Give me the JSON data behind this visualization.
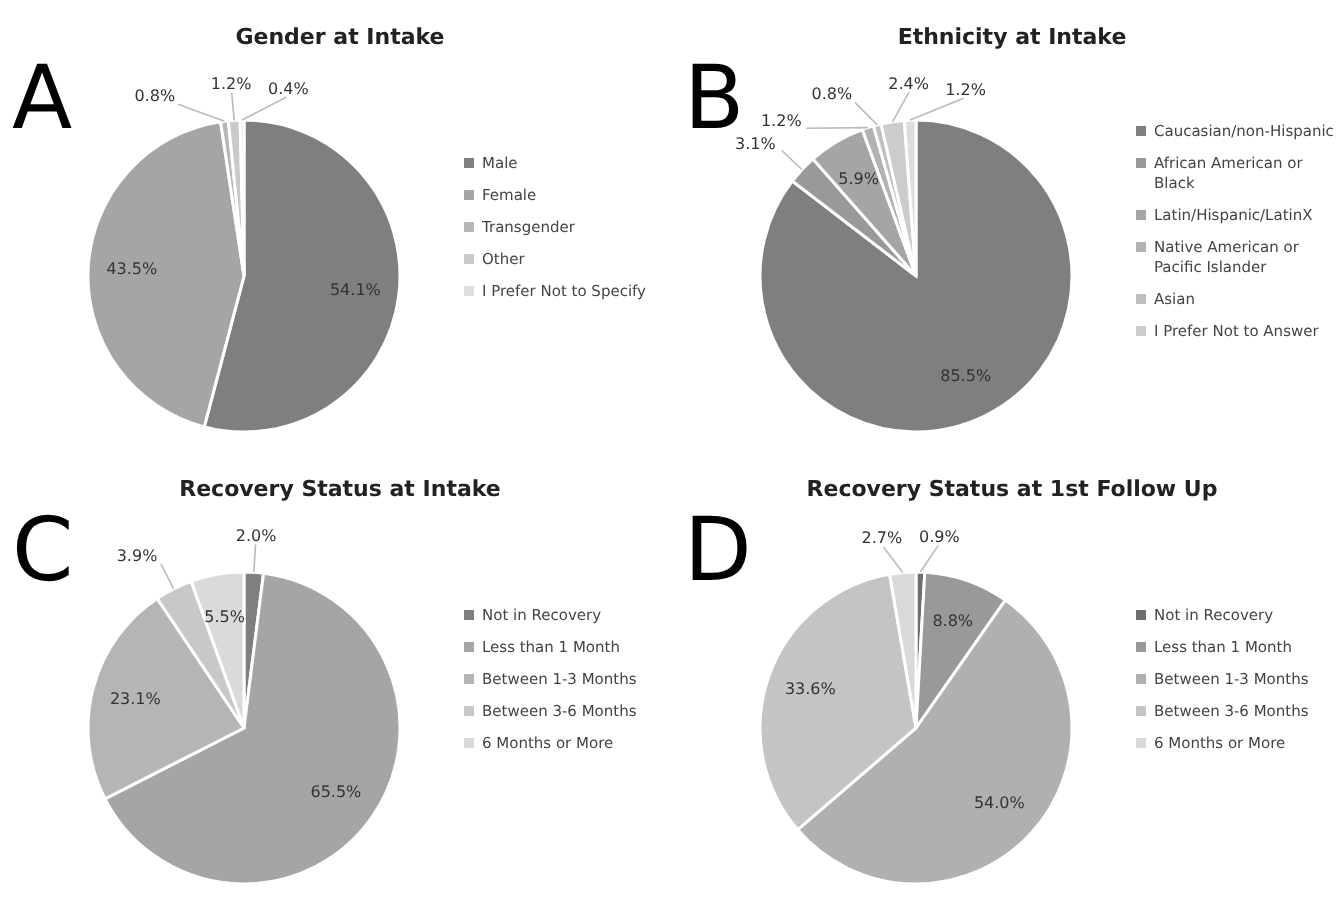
{
  "chart_data": [
    {
      "type": "pie",
      "title": "Gender at Intake",
      "annotations": [
        "A"
      ],
      "categories": [
        "Male",
        "Female",
        "Transgender",
        "Other",
        "I Prefer Not to Specify"
      ],
      "values": [
        54.1,
        43.5,
        0.8,
        1.2,
        0.4
      ],
      "colors": [
        "#7f7f7f",
        "#a5a5a5",
        "#b7b7b7",
        "#c9c9c9",
        "#dedede"
      ],
      "value_labels": [
        "54.1%",
        "43.5%",
        "0.8%",
        "1.2%",
        "0.4%"
      ],
      "legend": "right"
    },
    {
      "type": "pie",
      "title": "Ethnicity at Intake",
      "annotations": [
        "B"
      ],
      "categories": [
        "Caucasian/non-Hispanic",
        "African American or Black",
        "Latin/Hispanic/LatinX",
        "Native American or Pacific Islander",
        "Asian",
        "I Prefer Not to Answer",
        null
      ],
      "values": [
        85.5,
        3.1,
        5.9,
        1.2,
        0.8,
        2.4,
        1.2
      ],
      "colors": [
        "#7f7f7f",
        "#999999",
        "#a5a5a5",
        "#b2b2b2",
        "#bfbfbf",
        "#cccccc",
        "#dddddd"
      ],
      "value_labels": [
        "85.5%",
        "3.1%",
        "5.9%",
        "1.2%",
        "0.8%",
        "2.4%",
        "1.2%"
      ],
      "legend": "right"
    },
    {
      "type": "pie",
      "title": "Recovery Status at Intake",
      "annotations": [
        "C"
      ],
      "categories": [
        "Not in Recovery",
        "Less than 1 Month",
        "Between 1-3 Months",
        "Between 3-6 Months",
        "6 Months or More"
      ],
      "values": [
        2.0,
        65.5,
        23.1,
        3.9,
        5.5
      ],
      "colors": [
        "#7f7f7f",
        "#a5a5a5",
        "#b5b5b5",
        "#c8c8c8",
        "#dadada"
      ],
      "value_labels": [
        "2.0%",
        "65.5%",
        "23.1%",
        "3.9%",
        "5.5%"
      ],
      "legend": "right"
    },
    {
      "type": "pie",
      "title": "Recovery Status at 1st Follow Up",
      "annotations": [
        "D"
      ],
      "categories": [
        "Not in Recovery",
        "Less than 1 Month",
        "Between 1-3 Months",
        "Between 3-6 Months",
        "6 Months or More"
      ],
      "values": [
        0.9,
        8.8,
        54.0,
        33.6,
        2.7
      ],
      "colors": [
        "#6f6f6f",
        "#999999",
        "#b0b0b0",
        "#c4c4c4",
        "#d9d9d9"
      ],
      "value_labels": [
        "0.9%",
        "8.8%",
        "54.0%",
        "33.6%",
        "2.7%"
      ],
      "legend": "right"
    }
  ]
}
